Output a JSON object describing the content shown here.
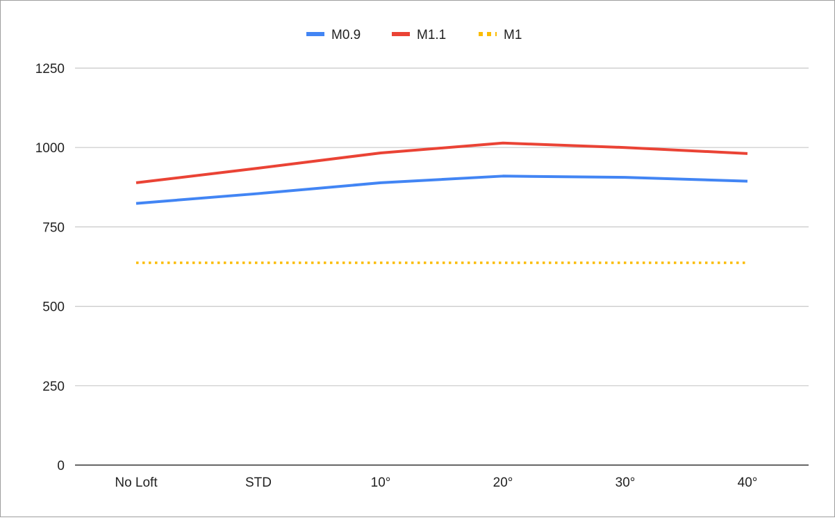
{
  "chart_data": {
    "type": "line",
    "title": "",
    "xlabel": "",
    "ylabel": "",
    "categories": [
      "No Loft",
      "STD",
      "10°",
      "20°",
      "30°",
      "40°"
    ],
    "ylim": [
      0,
      1250
    ],
    "yticks": [
      "0",
      "250",
      "500",
      "750",
      "1000",
      "1250"
    ],
    "grid": true,
    "legend_position": "top",
    "series": [
      {
        "name": "M0.9",
        "color": "#4285f4",
        "dash": "solid",
        "values": [
          824,
          855,
          889,
          910,
          906,
          894
        ]
      },
      {
        "name": "M1.1",
        "color": "#ea4335",
        "dash": "solid",
        "values": [
          889,
          935,
          983,
          1014,
          1000,
          981
        ]
      },
      {
        "name": "M1",
        "color": "#fbbc04",
        "dash": "dotted",
        "values": [
          637,
          637,
          637,
          637,
          637,
          637
        ]
      }
    ]
  }
}
